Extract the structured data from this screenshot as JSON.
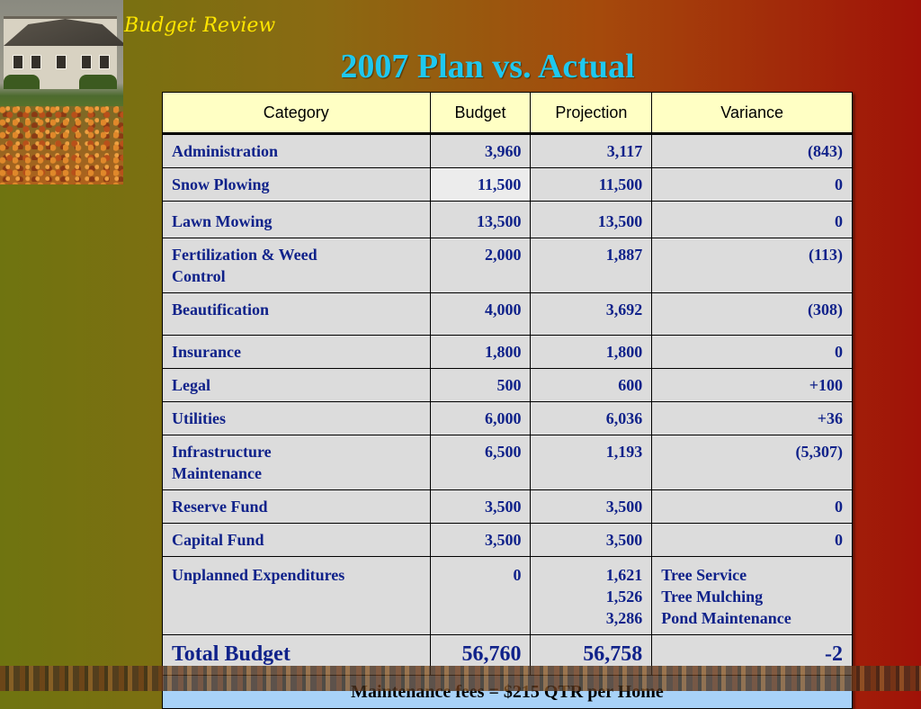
{
  "slide": {
    "section_title": "Budget Review",
    "title": "2007 Plan vs.  Actual"
  },
  "table": {
    "headers": {
      "category": "Category",
      "budget": "Budget",
      "projection": "Projection",
      "variance": "Variance"
    },
    "rows": [
      {
        "category": "Administration",
        "budget": "3,960",
        "projection": "3,117",
        "variance": "(843)"
      },
      {
        "category": "Snow Plowing",
        "budget": "11,500",
        "projection": "11,500",
        "variance": "0"
      },
      {
        "category": "Lawn Mowing",
        "budget": "13,500",
        "projection": "13,500",
        "variance": "0"
      },
      {
        "category_lines": [
          "Fertilization & Weed",
          "Control"
        ],
        "budget": "2,000",
        "projection": "1,887",
        "variance": "(113)"
      },
      {
        "category": "Beautification",
        "budget": "4,000",
        "projection": "3,692",
        "variance": "(308)"
      },
      {
        "category": "Insurance",
        "budget": "1,800",
        "projection": "1,800",
        "variance": "0"
      },
      {
        "category": "Legal",
        "budget": "500",
        "projection": "600",
        "variance": "+100"
      },
      {
        "category": "Utilities",
        "budget": "6,000",
        "projection": "6,036",
        "variance": "+36"
      },
      {
        "category_lines": [
          "Infrastructure",
          "Maintenance"
        ],
        "budget": "6,500",
        "projection": "1,193",
        "variance": "(5,307)"
      },
      {
        "category": "Reserve Fund",
        "budget": "3,500",
        "projection": "3,500",
        "variance": "0"
      },
      {
        "category": "Capital Fund",
        "budget": "3,500",
        "projection": "3,500",
        "variance": "0"
      }
    ],
    "unplanned": {
      "category": "Unplanned Expenditures",
      "budget": "0",
      "projections": [
        "1,621",
        "1,526",
        "3,286"
      ],
      "items": [
        "Tree Service",
        "Tree Mulching",
        "Pond Maintenance"
      ]
    },
    "total": {
      "label": "Total Budget",
      "budget": "56,760",
      "projection": "56,758",
      "variance": "-2"
    },
    "footer": "Maintenance fees =  $215 QTR per Home"
  }
}
